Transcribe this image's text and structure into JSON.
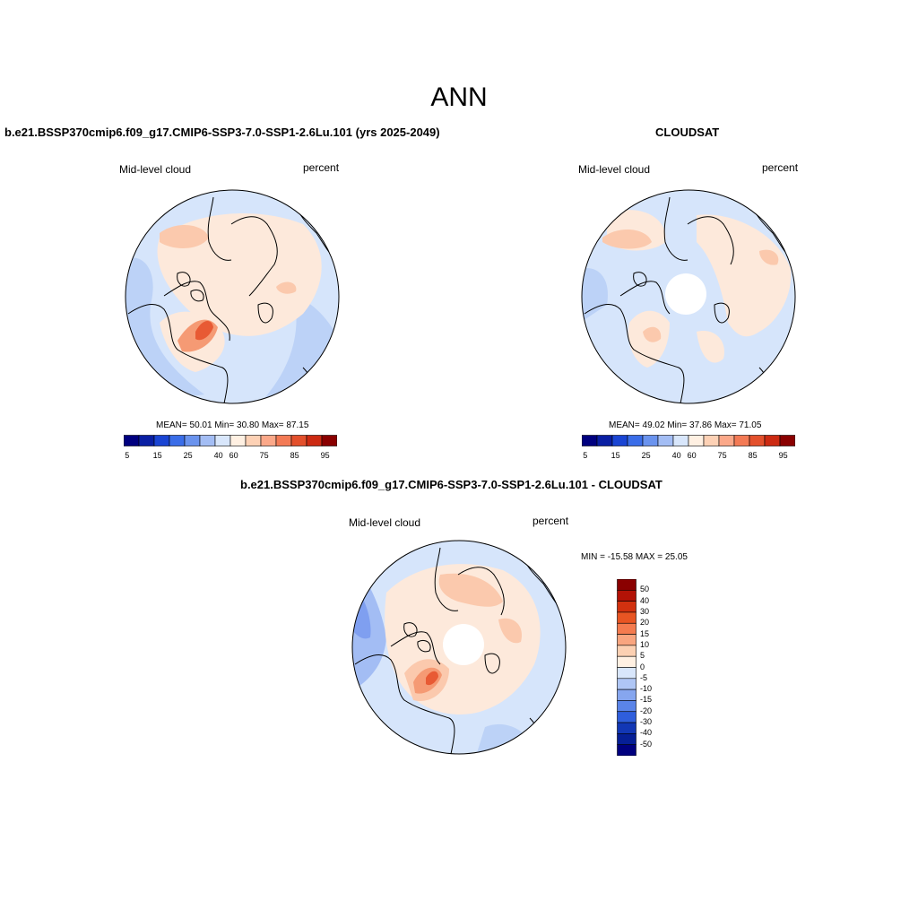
{
  "figure": {
    "title": "ANN",
    "bg": "#ffffff"
  },
  "panels": {
    "model": {
      "title": "b.e21.BSSP370cmip6.f09_g17.CMIP6-SSP3-7.0-SSP1-2.6Lu.101 (yrs 2025-2049)",
      "variable": "Mid-level cloud",
      "units": "percent",
      "stats": "MEAN=  50.01  Min=  30.80  Max=  87.15"
    },
    "obs": {
      "title": "CLOUDSAT",
      "variable": "Mid-level cloud",
      "units": "percent",
      "stats": "MEAN=  49.02  Min=  37.86  Max=  71.05"
    },
    "diff": {
      "title": "b.e21.BSSP370cmip6.f09_g17.CMIP6-SSP3-7.0-SSP1-2.6Lu.101 - CLOUDSAT",
      "variable": "Mid-level cloud",
      "units": "percent",
      "stats": "MIN = -15.58 MAX =  25.05"
    }
  },
  "colorbar_abs": {
    "colors": [
      "#00007f",
      "#0a1fa3",
      "#1a45d3",
      "#3a6de8",
      "#6a93ee",
      "#a3bdf4",
      "#d8e6fb",
      "#fff0e2",
      "#fdd1b5",
      "#fba889",
      "#f37a55",
      "#e3502c",
      "#cc2a12",
      "#8a0000"
    ],
    "labels": [
      "5",
      "15",
      "25",
      "40",
      "60",
      "75",
      "85",
      "95"
    ]
  },
  "colorbar_diff": {
    "colors": [
      "#8a0000",
      "#b31206",
      "#d2310f",
      "#e85523",
      "#f47b4f",
      "#f9a57f",
      "#fcd0b2",
      "#fff0e2",
      "#d8e6fb",
      "#afc6f5",
      "#86a6ef",
      "#5a84e8",
      "#2f5edc",
      "#1237b5",
      "#061f96",
      "#00007f"
    ],
    "labels": [
      "50",
      "40",
      "30",
      "20",
      "15",
      "10",
      "5",
      "0",
      "-5",
      "-10",
      "-15",
      "-20",
      "-30",
      "-40",
      "-50"
    ]
  },
  "map_colors": {
    "bg_blue": "#d6e5fb",
    "light_blue": "#bcd2f7",
    "mid_blue": "#a3bdf4",
    "dark_blue": "#7f9ff0",
    "peach": "#fde9db",
    "salmon": "#fbc9ad",
    "orange": "#f59a74",
    "red": "#e85a34",
    "deep_red": "#d13a1c",
    "coast": "#000000"
  }
}
